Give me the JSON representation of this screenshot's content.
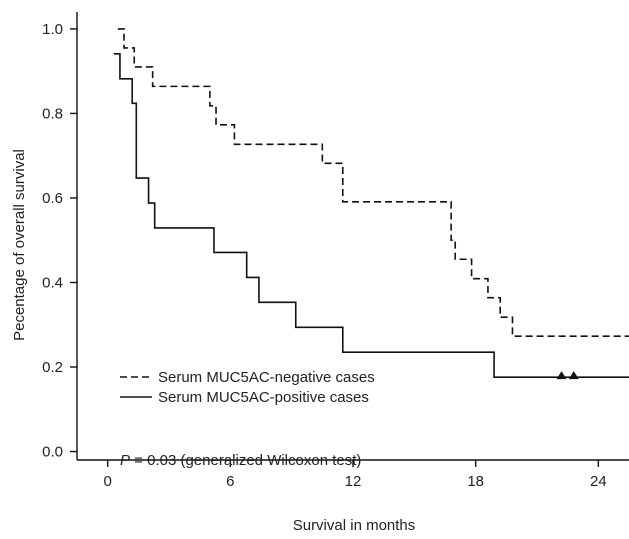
{
  "chart_data": {
    "type": "line",
    "step": true,
    "xlabel": "Survival in months",
    "ylabel": "Pecentage of overall survival",
    "xlim": [
      -1.5,
      25.5
    ],
    "ylim": [
      -0.02,
      1.04
    ],
    "xticks": [
      0,
      6,
      12,
      18,
      24
    ],
    "yticks": [
      0.0,
      0.2,
      0.4,
      0.6,
      0.8,
      1.0
    ],
    "ytick_labels": [
      "0.0",
      "0.2",
      "0.4",
      "0.6",
      "0.8",
      "1.0"
    ],
    "grid": false,
    "legend_position": "lower-left",
    "annotation": {
      "italic": "P",
      "text": " = 0.03 (generalized Wilcoxon test)"
    },
    "series": [
      {
        "name": "Serum MUC5AC-negative cases",
        "line_style": "dashed",
        "x": [
          0.5,
          0.8,
          1.0,
          1.3,
          2.2,
          5.0,
          5.3,
          6.2,
          10.5,
          11.5,
          16.8,
          17.0,
          17.3,
          17.8,
          18.6,
          18.9,
          19.2,
          19.8,
          25.5
        ],
        "y": [
          1.0,
          0.955,
          0.955,
          0.91,
          0.864,
          0.818,
          0.773,
          0.727,
          0.682,
          0.591,
          0.5,
          0.455,
          0.455,
          0.409,
          0.364,
          0.364,
          0.318,
          0.273,
          0.273
        ]
      },
      {
        "name": "Serum MUC5AC-positive cases",
        "line_style": "solid",
        "x": [
          0.3,
          0.6,
          1.2,
          1.4,
          2.0,
          2.3,
          5.2,
          6.8,
          7.4,
          9.2,
          11.5,
          18.9,
          25.5
        ],
        "y": [
          0.941,
          0.882,
          0.824,
          0.647,
          0.588,
          0.529,
          0.471,
          0.412,
          0.353,
          0.294,
          0.235,
          0.176,
          0.176
        ]
      }
    ],
    "censor_markers": [
      {
        "series": 1,
        "x": 22.2,
        "y": 0.176,
        "symbol": "triangle"
      },
      {
        "series": 1,
        "x": 22.8,
        "y": 0.176,
        "symbol": "triangle"
      }
    ]
  }
}
